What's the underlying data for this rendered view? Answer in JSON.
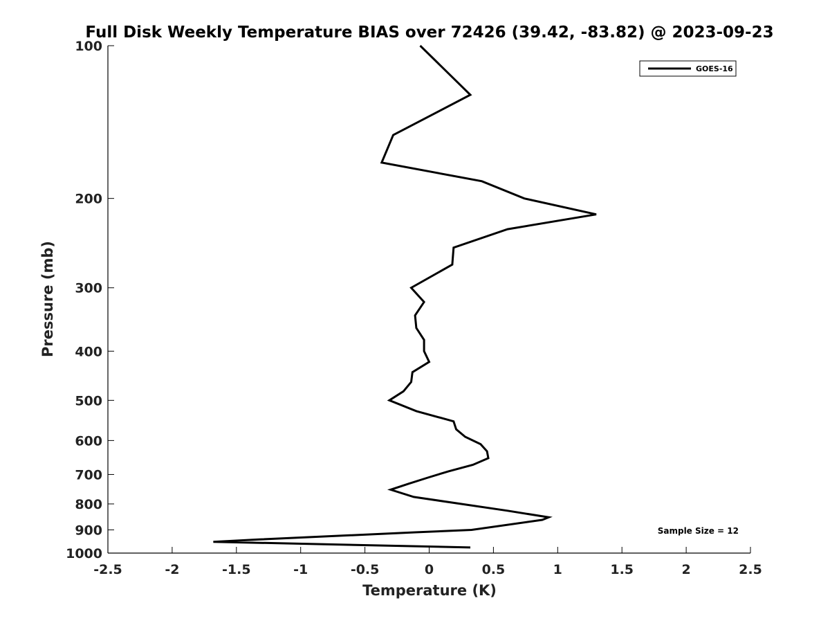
{
  "chart_data": {
    "type": "line",
    "title": "Full Disk Weekly Temperature BIAS over 72426 (39.42, -83.82) @ 2023-09-23",
    "xlabel": "Temperature (K)",
    "ylabel": "Pressure (mb)",
    "xlim": [
      -2.5,
      2.5
    ],
    "ylim": [
      100,
      1000
    ],
    "yscale": "log",
    "yreversed": true,
    "grid": false,
    "legend_position": "top-right",
    "x_ticks": [
      -2.5,
      -2,
      -1.5,
      -1,
      -0.5,
      0,
      0.5,
      1,
      1.5,
      2,
      2.5
    ],
    "x_tick_labels": [
      "-2.5",
      "-2",
      "-1.5",
      "-1",
      "-0.5",
      "0",
      "0.5",
      "1",
      "1.5",
      "2",
      "2.5"
    ],
    "y_ticks": [
      100,
      200,
      300,
      400,
      500,
      600,
      700,
      800,
      900,
      1000
    ],
    "y_tick_labels": [
      "100",
      "200",
      "300",
      "400",
      "500",
      "600",
      "700",
      "800",
      "900",
      "1000"
    ],
    "series": [
      {
        "name": "GOES-16",
        "color": "#000000",
        "points": [
          {
            "x": -0.07,
            "p": 100
          },
          {
            "x": 0.32,
            "p": 125
          },
          {
            "x": -0.28,
            "p": 150
          },
          {
            "x": -0.37,
            "p": 170
          },
          {
            "x": 0.41,
            "p": 185
          },
          {
            "x": 0.74,
            "p": 200
          },
          {
            "x": 1.3,
            "p": 215
          },
          {
            "x": 0.61,
            "p": 230
          },
          {
            "x": 0.19,
            "p": 250
          },
          {
            "x": 0.18,
            "p": 270
          },
          {
            "x": -0.14,
            "p": 300
          },
          {
            "x": -0.04,
            "p": 320
          },
          {
            "x": -0.11,
            "p": 340
          },
          {
            "x": -0.1,
            "p": 360
          },
          {
            "x": -0.04,
            "p": 380
          },
          {
            "x": -0.04,
            "p": 400
          },
          {
            "x": 0.0,
            "p": 420
          },
          {
            "x": -0.13,
            "p": 440
          },
          {
            "x": -0.14,
            "p": 460
          },
          {
            "x": -0.2,
            "p": 480
          },
          {
            "x": -0.31,
            "p": 500
          },
          {
            "x": -0.1,
            "p": 525
          },
          {
            "x": 0.19,
            "p": 550
          },
          {
            "x": 0.21,
            "p": 570
          },
          {
            "x": 0.28,
            "p": 590
          },
          {
            "x": 0.4,
            "p": 610
          },
          {
            "x": 0.45,
            "p": 630
          },
          {
            "x": 0.46,
            "p": 650
          },
          {
            "x": 0.34,
            "p": 670
          },
          {
            "x": 0.15,
            "p": 690
          },
          {
            "x": -0.01,
            "p": 710
          },
          {
            "x": -0.16,
            "p": 730
          },
          {
            "x": -0.3,
            "p": 750
          },
          {
            "x": -0.12,
            "p": 775
          },
          {
            "x": 0.61,
            "p": 825
          },
          {
            "x": 0.93,
            "p": 850
          },
          {
            "x": 0.88,
            "p": 860
          },
          {
            "x": 0.33,
            "p": 900
          },
          {
            "x": -0.11,
            "p": 910
          },
          {
            "x": -1.32,
            "p": 940
          },
          {
            "x": -1.68,
            "p": 950
          },
          {
            "x": 0.32,
            "p": 975
          }
        ]
      }
    ],
    "annotations": [
      {
        "text": "Sample Size = 12",
        "position": "bottom-right"
      }
    ]
  }
}
